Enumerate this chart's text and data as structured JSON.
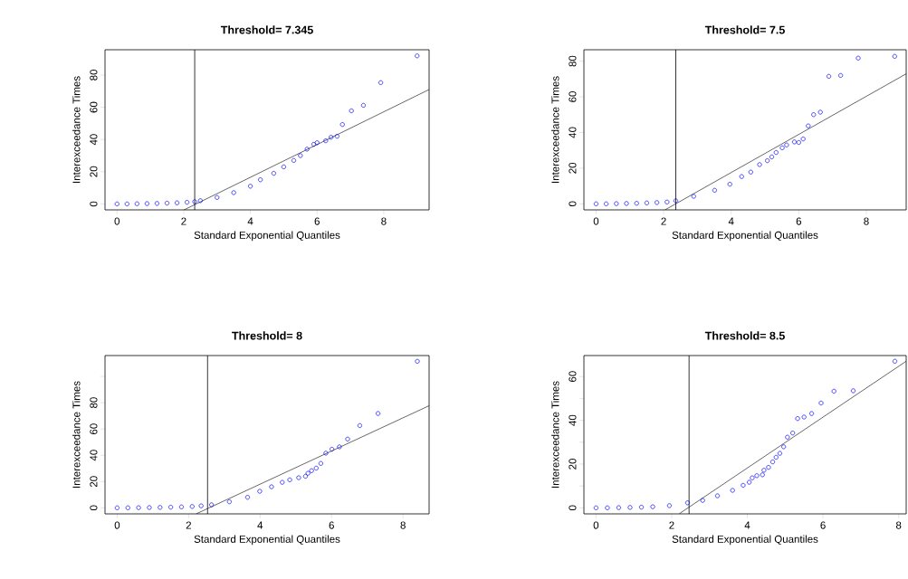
{
  "chart_data": [
    {
      "type": "scatter",
      "title": "Threshold= 7.345",
      "xlabel": "Standard Exponential Quantiles",
      "ylabel": "Interexceedance Times",
      "xlim": [
        -0.36,
        9.36
      ],
      "ylim": [
        -3.7,
        95.7
      ],
      "xticks": [
        0,
        2,
        4,
        6,
        8
      ],
      "yticks": [
        0,
        20,
        40,
        60,
        80
      ],
      "ref_lines": [
        {
          "axis": "x",
          "value": 2.33
        }
      ],
      "series": [
        {
          "marker": "circle",
          "color": "#0000ff",
          "x": [
            0,
            0.3,
            0.6,
            0.9,
            1.2,
            1.5,
            1.8,
            2.1,
            2.33,
            2.5,
            3,
            3.5,
            4,
            4.3,
            4.7,
            5,
            5.3,
            5.5,
            5.7,
            5.9,
            6.0,
            6.26,
            6.42,
            6.6,
            6.76,
            7.03,
            7.39,
            7.91,
            9.0
          ],
          "values": [
            0,
            0,
            0.1,
            0.2,
            0.3,
            0.5,
            0.7,
            1.0,
            1.4,
            2,
            4,
            7,
            11,
            15,
            19,
            23,
            27,
            30,
            34,
            37,
            38,
            39.2,
            41.4,
            42,
            49.3,
            57.8,
            61.2,
            75.3,
            91.9
          ]
        },
        {
          "type": "line",
          "marker": "none",
          "color": "#000000",
          "x": [
            2.01,
            9.36
          ],
          "values": [
            -3.7,
            71.0
          ]
        }
      ]
    },
    {
      "type": "scatter",
      "title": "Threshold= 7.5",
      "xlabel": "Standard Exponential Quantiles",
      "ylabel": "Interexceedance Times",
      "xlim": [
        -0.36,
        9.18
      ],
      "ylim": [
        -3.4,
        86.4
      ],
      "xticks": [
        0,
        2,
        4,
        6,
        8
      ],
      "yticks": [
        0,
        20,
        40,
        60,
        80
      ],
      "ref_lines": [
        {
          "axis": "x",
          "value": 2.36
        }
      ],
      "series": [
        {
          "marker": "circle",
          "color": "#0000ff",
          "x": [
            0,
            0.3,
            0.6,
            0.9,
            1.2,
            1.5,
            1.8,
            2.1,
            2.36,
            2.89,
            3.51,
            3.96,
            4.31,
            4.58,
            4.84,
            5.07,
            5.2,
            5.33,
            5.51,
            5.64,
            5.87,
            6.0,
            6.13,
            6.28,
            6.44,
            6.64,
            6.89,
            7.24,
            7.76,
            8.84
          ],
          "values": [
            0,
            0,
            0.1,
            0.2,
            0.3,
            0.5,
            0.7,
            1.0,
            1.7,
            4.2,
            7.6,
            11,
            15.3,
            17.8,
            22,
            24.2,
            26.3,
            28.8,
            31.4,
            33,
            34.7,
            34.4,
            36.4,
            43.7,
            50,
            51.4,
            71.5,
            72,
            81.7,
            82.7
          ]
        },
        {
          "type": "line",
          "marker": "none",
          "color": "#000000",
          "x": [
            2.04,
            9.18
          ],
          "values": [
            -3.4,
            72.9
          ]
        }
      ]
    },
    {
      "type": "scatter",
      "title": "Threshold= 8",
      "xlabel": "Standard Exponential Quantiles",
      "ylabel": "Interexceedance Times",
      "xlim": [
        -0.34,
        8.73
      ],
      "ylim": [
        -4.6,
        115.9
      ],
      "xticks": [
        0,
        2,
        4,
        6,
        8
      ],
      "yticks": [
        0,
        20,
        40,
        60,
        80,
        {
          "value": 100,
          "label": null
        }
      ],
      "ref_lines": [
        {
          "axis": "x",
          "value": 2.53
        }
      ],
      "series": [
        {
          "marker": "circle",
          "color": "#0000ff",
          "x": [
            0,
            0.3,
            0.6,
            0.9,
            1.2,
            1.5,
            1.8,
            2.1,
            2.35,
            2.64,
            3.14,
            3.65,
            3.99,
            4.32,
            4.62,
            4.83,
            5.08,
            5.27,
            5.34,
            5.44,
            5.57,
            5.7,
            5.84,
            6.01,
            6.22,
            6.45,
            6.79,
            7.3,
            8.4
          ],
          "values": [
            0,
            0,
            0.1,
            0.2,
            0.3,
            0.5,
            0.7,
            1.0,
            1.5,
            2.3,
            4.6,
            8,
            12.6,
            16,
            19.4,
            21.3,
            22.9,
            24,
            26.3,
            28.3,
            30.2,
            33.8,
            41.6,
            44.6,
            46.4,
            52.3,
            62.6,
            71.8,
            111.5
          ]
        },
        {
          "type": "line",
          "marker": "none",
          "color": "#000000",
          "x": [
            2.21,
            8.73
          ],
          "values": [
            -4.6,
            77.7
          ]
        }
      ]
    },
    {
      "type": "scatter",
      "title": "Threshold= 8.5",
      "xlabel": "Standard Exponential Quantiles",
      "ylabel": "Interexceedance Times",
      "xlim": [
        -0.32,
        8.2
      ],
      "ylim": [
        -2.75,
        69.6
      ],
      "xticks": [
        0,
        2,
        4,
        6,
        8
      ],
      "yticks": [
        0,
        {
          "value": 10,
          "label": null
        },
        20,
        {
          "value": 30,
          "label": null
        },
        40,
        {
          "value": 50,
          "label": null
        },
        60
      ],
      "ref_lines": [
        {
          "axis": "x",
          "value": 2.46
        }
      ],
      "series": [
        {
          "marker": "circle",
          "color": "#0000ff",
          "x": [
            0,
            0.3,
            0.6,
            0.9,
            1.2,
            1.5,
            1.94,
            2.42,
            2.82,
            3.21,
            3.61,
            3.89,
            4.05,
            4.13,
            4.25,
            4.4,
            4.44,
            4.56,
            4.67,
            4.76,
            4.86,
            4.96,
            5.06,
            5.2,
            5.33,
            5.5,
            5.7,
            5.95,
            6.29,
            6.8,
            7.9
          ],
          "values": [
            0,
            0,
            0.1,
            0.2,
            0.3,
            0.5,
            1,
            2.3,
            3.4,
            5.5,
            8,
            10.3,
            11.7,
            13.7,
            14.7,
            15.1,
            17.2,
            18.5,
            21,
            23.1,
            24.9,
            27.9,
            32.3,
            34.2,
            40.8,
            41.5,
            43.1,
            47.9,
            53.3,
            53.5,
            67
          ]
        },
        {
          "type": "line",
          "marker": "none",
          "color": "#000000",
          "x": [
            2.2,
            8.2
          ],
          "values": [
            -2.7,
            67
          ]
        }
      ]
    }
  ]
}
